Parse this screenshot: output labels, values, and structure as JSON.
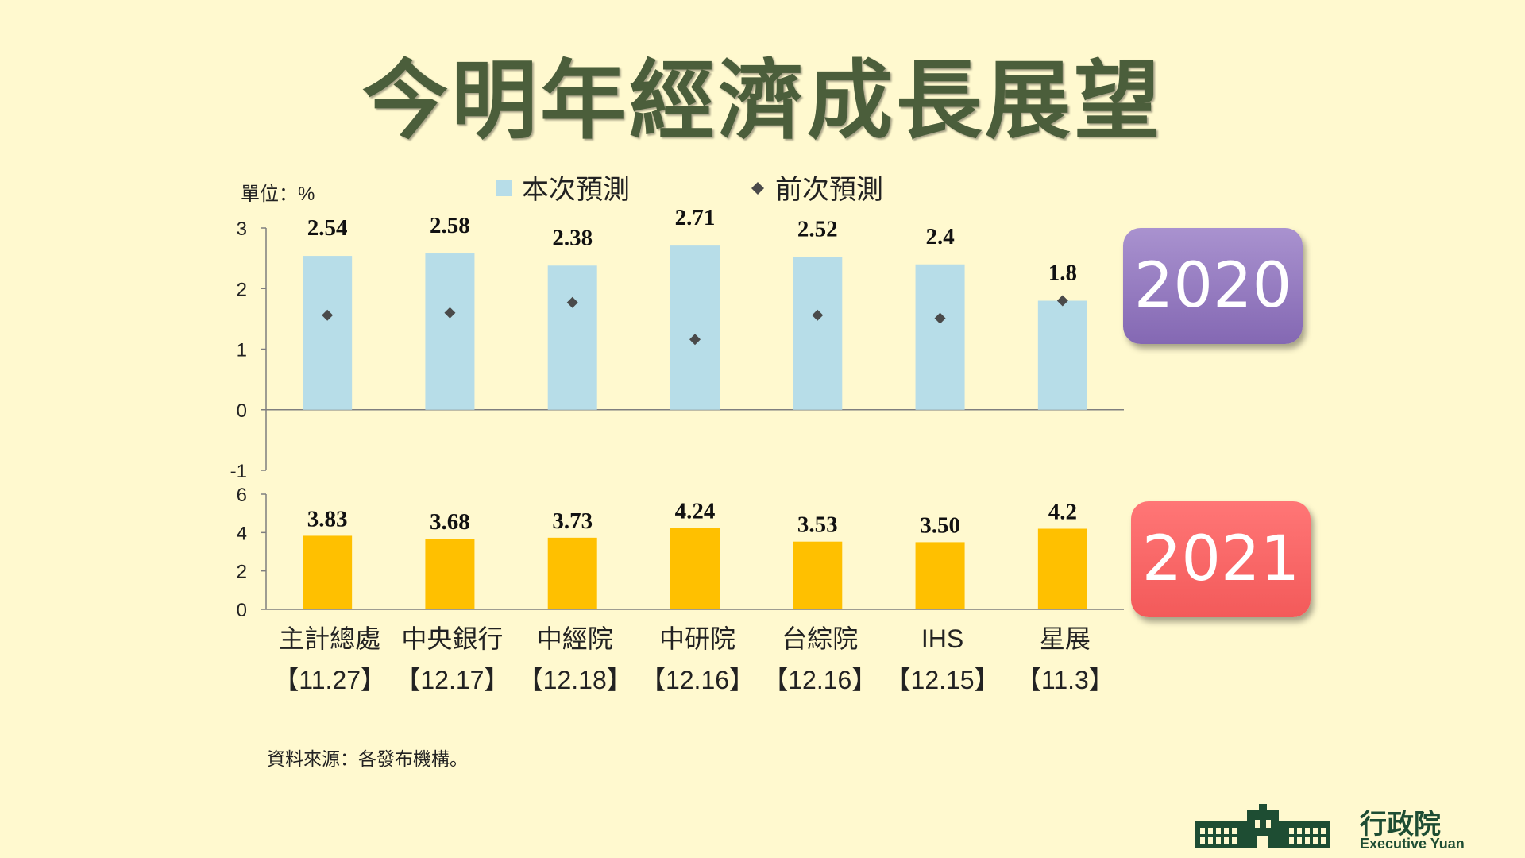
{
  "title": "今明年經濟成長展望",
  "unit_label": "單位：%",
  "legend": {
    "current": "本次預測",
    "previous": "前次預測"
  },
  "badges": {
    "year_2020": "2020",
    "year_2021": "2021"
  },
  "colors": {
    "background": "#fff9cf",
    "bar_2020": "#b7dde8",
    "bar_2021": "#ffc000",
    "marker": "#4a4a4a",
    "title": "#4b5e3b"
  },
  "source_note": "資料來源：各發布機構。",
  "logo": {
    "name": "行政院",
    "english": "Executive Yuan"
  },
  "chart_data": [
    {
      "type": "bar",
      "year": "2020",
      "categories": [
        "主計總處",
        "中央銀行",
        "中經院",
        "中研院",
        "台綜院",
        "IHS",
        "星展"
      ],
      "dates": [
        "【11.27】",
        "【12.17】",
        "【12.18】",
        "【12.16】",
        "【12.16】",
        "【12.15】",
        "【11.3】"
      ],
      "series": [
        {
          "name": "本次預測",
          "values": [
            2.54,
            2.58,
            2.38,
            2.71,
            2.52,
            2.4,
            1.8
          ],
          "labels": [
            "2.54",
            "2.58",
            "2.38",
            "2.71",
            "2.52",
            "2.4",
            "1.8"
          ]
        },
        {
          "name": "前次預測",
          "values": [
            1.56,
            1.6,
            1.77,
            1.16,
            1.56,
            1.51,
            1.8
          ]
        }
      ],
      "yticks": [
        "3",
        "2",
        "1",
        "0",
        "-1"
      ],
      "ylim": [
        -1,
        3
      ],
      "legend_position": "top"
    },
    {
      "type": "bar",
      "year": "2021",
      "categories": [
        "主計總處",
        "中央銀行",
        "中經院",
        "中研院",
        "台綜院",
        "IHS",
        "星展"
      ],
      "series": [
        {
          "name": "本次預測",
          "values": [
            3.83,
            3.68,
            3.73,
            4.24,
            3.53,
            3.5,
            4.2
          ],
          "labels": [
            "3.83",
            "3.68",
            "3.73",
            "4.24",
            "3.53",
            "3.50",
            "4.2"
          ]
        }
      ],
      "yticks": [
        "6",
        "4",
        "2",
        "0"
      ],
      "ylim": [
        0,
        6
      ]
    }
  ]
}
